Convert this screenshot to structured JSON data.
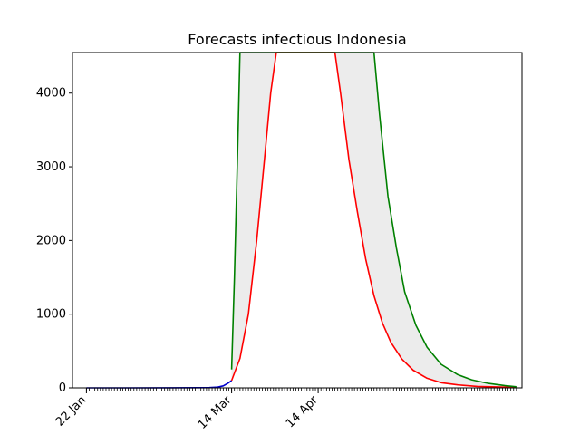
{
  "chart_data": {
    "type": "line",
    "title": "Forecasts infectious Indonesia",
    "xlabel": "",
    "ylabel": "",
    "x_ticks": [
      "22 Jan",
      "14 Mar",
      "14 Apr"
    ],
    "x_range": [
      "2020-01-17",
      "2020-06-26"
    ],
    "y_ticks": [
      0,
      1000,
      2000,
      3000,
      4000
    ],
    "ylim": [
      0,
      4550
    ],
    "grid": false,
    "legend": "none",
    "colors": {
      "observed": "#0000cc",
      "central_forecast": "#ff0000",
      "upper_forecast": "#008000",
      "band": "#ececec"
    },
    "series": [
      {
        "color": "blue",
        "points": [
          [
            "2020-01-22",
            0
          ],
          [
            "2020-02-05",
            0
          ],
          [
            "2020-02-20",
            1
          ],
          [
            "2020-03-02",
            2
          ],
          [
            "2020-03-06",
            4
          ],
          [
            "2020-03-09",
            10
          ],
          [
            "2020-03-11",
            27
          ],
          [
            "2020-03-13",
            70
          ],
          [
            "2020-03-14",
            100
          ]
        ]
      },
      {
        "color": "red",
        "points": [
          [
            "2020-03-14",
            100
          ],
          [
            "2020-03-17",
            400
          ],
          [
            "2020-03-20",
            1000
          ],
          [
            "2020-03-23",
            2000
          ],
          [
            "2020-03-26",
            3200
          ],
          [
            "2020-03-28",
            4000
          ],
          [
            "2020-03-30",
            4550
          ],
          [
            "2020-04-20",
            4550
          ],
          [
            "2020-04-22",
            4000
          ],
          [
            "2020-04-25",
            3100
          ],
          [
            "2020-04-28",
            2400
          ],
          [
            "2020-05-01",
            1750
          ],
          [
            "2020-05-04",
            1250
          ],
          [
            "2020-05-07",
            880
          ],
          [
            "2020-05-10",
            620
          ],
          [
            "2020-05-14",
            390
          ],
          [
            "2020-05-18",
            240
          ],
          [
            "2020-05-23",
            130
          ],
          [
            "2020-05-28",
            70
          ],
          [
            "2020-06-03",
            40
          ],
          [
            "2020-06-10",
            20
          ],
          [
            "2020-06-20",
            10
          ],
          [
            "2020-06-24",
            6
          ]
        ]
      },
      {
        "color": "green",
        "points": [
          [
            "2020-03-14",
            250
          ],
          [
            "2020-03-15",
            1500
          ],
          [
            "2020-03-16",
            3000
          ],
          [
            "2020-03-17",
            4550
          ],
          [
            "2020-05-04",
            4550
          ],
          [
            "2020-05-06",
            3700
          ],
          [
            "2020-05-09",
            2600
          ],
          [
            "2020-05-12",
            1900
          ],
          [
            "2020-05-15",
            1300
          ],
          [
            "2020-05-19",
            850
          ],
          [
            "2020-05-23",
            550
          ],
          [
            "2020-05-28",
            320
          ],
          [
            "2020-06-03",
            180
          ],
          [
            "2020-06-08",
            110
          ],
          [
            "2020-06-14",
            60
          ],
          [
            "2020-06-20",
            30
          ],
          [
            "2020-06-24",
            15
          ]
        ]
      }
    ]
  }
}
